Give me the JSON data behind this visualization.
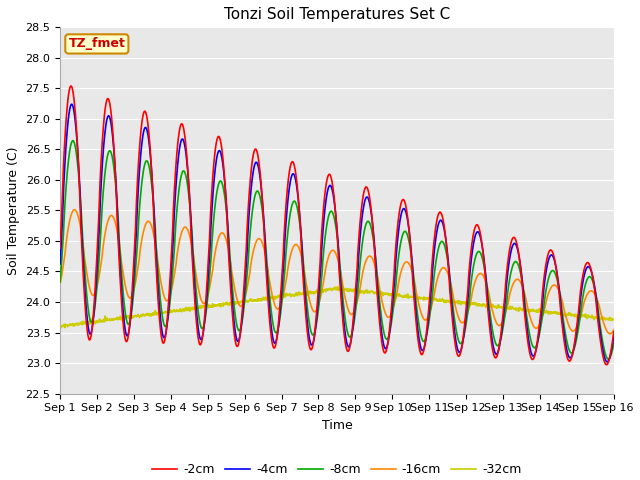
{
  "title": "Tonzi Soil Temperatures Set C",
  "xlabel": "Time",
  "ylabel": "Soil Temperature (C)",
  "ylim": [
    22.5,
    28.5
  ],
  "xlim": [
    0,
    15
  ],
  "xtick_labels": [
    "Sep 1",
    "Sep 2",
    "Sep 3",
    "Sep 4",
    "Sep 5",
    "Sep 6",
    "Sep 7",
    "Sep 8",
    "Sep 9",
    "Sep 10",
    "Sep 11",
    "Sep 12",
    "Sep 13",
    "Sep 14",
    "Sep 15",
    "Sep 16"
  ],
  "ytick_values": [
    22.5,
    23.0,
    23.5,
    24.0,
    24.5,
    25.0,
    25.5,
    26.0,
    26.5,
    27.0,
    27.5,
    28.0,
    28.5
  ],
  "series_colors": [
    "#ff0000",
    "#0000ff",
    "#00aa00",
    "#ff8800",
    "#cccc00"
  ],
  "series_labels": [
    "-2cm",
    "-4cm",
    "-8cm",
    "-16cm",
    "-32cm"
  ],
  "annotation_text": "TZ_fmet",
  "annotation_color": "#cc0000",
  "annotation_bg": "#ffffcc",
  "annotation_edge": "#cc8800",
  "fig_bg": "#ffffff",
  "plot_bg": "#e8e8e8",
  "grid_color": "#ffffff",
  "linewidth": 1.2,
  "title_fontsize": 11,
  "axis_fontsize": 9,
  "tick_fontsize": 8,
  "legend_fontsize": 9
}
